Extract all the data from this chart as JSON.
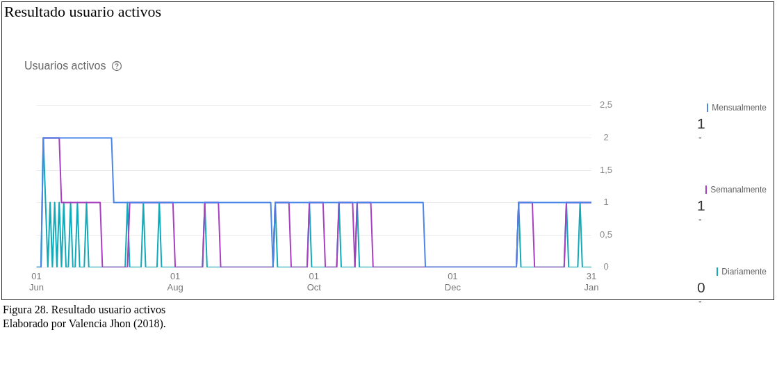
{
  "chart_data": {
    "type": "line",
    "title": "Resultado usuario activos",
    "subtitle": "Usuarios activos",
    "xlim": [
      "2018-06-01",
      "2019-01-31"
    ],
    "xticks": [
      {
        "value": "2018-06-01",
        "label": "01\nJun"
      },
      {
        "value": "2018-08-01",
        "label": "01\nAug"
      },
      {
        "value": "2018-10-01",
        "label": "01\nOct"
      },
      {
        "value": "2018-12-01",
        "label": "01\nDec"
      },
      {
        "value": "2019-01-31",
        "label": "31\nJan"
      }
    ],
    "ylim": [
      0,
      2.5
    ],
    "yticks": [
      0,
      {
        "value": 0.5,
        "label": "0,5"
      },
      1,
      {
        "value": 1.5,
        "label": "1,5"
      },
      2,
      {
        "value": 2.5,
        "label": "2,5"
      }
    ],
    "grid": "y",
    "legend": "right",
    "marker": "none",
    "line_style": "solid",
    "series": [
      {
        "name": "Mensualmente",
        "color": "#4a86e8",
        "x": [
          "2018-06-01",
          "2018-06-03",
          "2018-06-04",
          "2018-07-04",
          "2018-07-05",
          "2018-09-12",
          "2018-09-13",
          "2018-09-14",
          "2018-11-18",
          "2018-11-19",
          "2018-12-29",
          "2018-12-30",
          "2019-01-31"
        ],
        "values": [
          0,
          0,
          2,
          2,
          1,
          1,
          0,
          1,
          1,
          0,
          0,
          1,
          1
        ]
      },
      {
        "name": "Semanalmente",
        "color": "#a83fbf",
        "x": [
          "2018-06-04",
          "2018-06-11",
          "2018-06-12",
          "2018-06-29",
          "2018-06-30",
          "2018-07-11",
          "2018-07-12",
          "2018-07-31",
          "2018-08-01",
          "2018-08-13",
          "2018-08-14",
          "2018-08-20",
          "2018-08-21",
          "2018-09-13",
          "2018-09-14",
          "2018-09-20",
          "2018-09-21",
          "2018-09-28",
          "2018-09-29",
          "2018-10-05",
          "2018-10-06",
          "2018-10-11",
          "2018-10-12",
          "2018-10-18",
          "2018-10-19",
          "2018-10-20",
          "2018-10-26",
          "2018-10-27",
          "2018-12-29",
          "2018-12-30",
          "2019-01-05",
          "2019-01-06",
          "2019-01-19",
          "2019-01-20",
          "2019-01-31"
        ],
        "values": [
          2,
          2,
          1,
          1,
          0,
          0,
          1,
          1,
          0,
          0,
          1,
          1,
          0,
          0,
          1,
          1,
          0,
          0,
          1,
          1,
          0,
          0,
          1,
          1,
          0,
          1,
          1,
          0,
          0,
          1,
          1,
          0,
          0,
          1,
          1
        ]
      },
      {
        "name": "Diariamente",
        "color": "#12a9b8",
        "x": [
          "2018-06-01",
          "2018-06-03",
          "2018-06-04",
          "2018-06-05",
          "2018-06-06",
          "2018-06-07",
          "2018-06-08",
          "2018-06-09",
          "2018-06-10",
          "2018-06-11",
          "2018-06-12",
          "2018-06-13",
          "2018-06-14",
          "2018-06-15",
          "2018-06-16",
          "2018-06-17",
          "2018-06-18",
          "2018-06-19",
          "2018-06-20",
          "2018-06-22",
          "2018-06-23",
          "2018-06-24",
          "2018-07-10",
          "2018-07-11",
          "2018-07-12",
          "2018-07-17",
          "2018-07-18",
          "2018-07-19",
          "2018-07-24",
          "2018-07-25",
          "2018-07-26",
          "2018-08-13",
          "2018-08-14",
          "2018-08-15",
          "2018-09-13",
          "2018-09-14",
          "2018-09-15",
          "2018-09-28",
          "2018-09-29",
          "2018-09-30",
          "2018-10-11",
          "2018-10-12",
          "2018-10-13",
          "2018-10-19",
          "2018-10-20",
          "2018-10-21",
          "2018-12-29",
          "2018-12-30",
          "2018-12-31",
          "2019-01-19",
          "2019-01-20",
          "2019-01-21",
          "2019-01-25",
          "2019-01-26",
          "2019-01-27",
          "2019-01-31"
        ],
        "values": [
          0,
          0,
          2,
          1,
          0,
          1,
          0,
          1,
          0,
          1,
          0,
          1,
          0,
          0,
          1,
          0,
          0,
          1,
          0,
          0,
          1,
          0,
          0,
          1,
          0,
          0,
          1,
          0,
          0,
          1,
          0,
          0,
          1,
          0,
          0,
          1,
          0,
          0,
          1,
          0,
          0,
          1,
          0,
          0,
          1,
          0,
          0,
          1,
          0,
          0,
          1,
          0,
          0,
          1,
          0,
          0
        ]
      }
    ],
    "annotations": [
      "1",
      "-",
      "1",
      "-",
      "0",
      "-",
      "Figura 28. Resultado usuario activos",
      "Elaborado por Valencia Jhon (2018)."
    ]
  }
}
